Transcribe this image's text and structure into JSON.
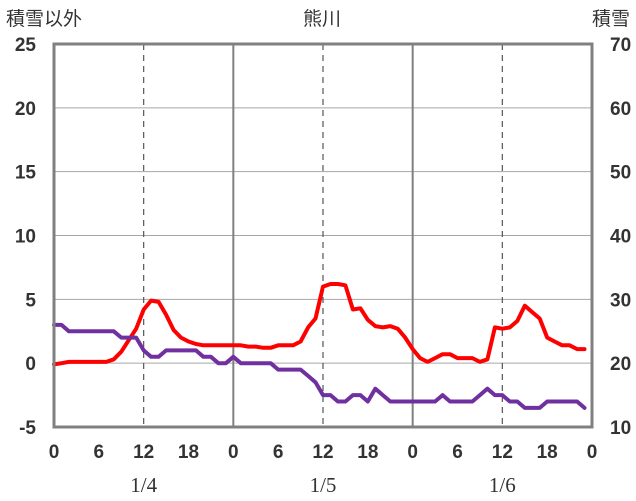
{
  "chart_data": {
    "type": "line",
    "title": "熊川",
    "ylabel_left": "積雪以外",
    "ylabel_right": "積雪",
    "y_left_range": [
      -5,
      25
    ],
    "y_left_ticks": [
      "-5",
      "0",
      "5",
      "10",
      "15",
      "20",
      "25"
    ],
    "y_right_range": [
      10,
      70
    ],
    "y_right_ticks": [
      "10",
      "20",
      "30",
      "40",
      "50",
      "60",
      "70"
    ],
    "x_range_hours": [
      0,
      72
    ],
    "x_tick_labels": [
      "0",
      "6",
      "12",
      "18",
      "0",
      "6",
      "12",
      "18",
      "0",
      "6",
      "12",
      "18",
      "0"
    ],
    "date_labels": [
      {
        "label": "1/4",
        "hour": 12
      },
      {
        "label": "1/5",
        "hour": 36
      },
      {
        "label": "1/6",
        "hour": 60
      }
    ],
    "day_boundaries": [
      24,
      48
    ],
    "dashed_gridlines": [
      12,
      36,
      60
    ],
    "series": [
      {
        "axis": "left",
        "color": "#ff0000",
        "x": [
          0,
          1,
          2,
          3,
          4,
          5,
          6,
          7,
          8,
          9,
          10,
          11,
          12,
          13,
          14,
          15,
          16,
          17,
          18,
          19,
          20,
          21,
          22,
          23,
          24,
          25,
          26,
          27,
          28,
          29,
          30,
          31,
          32,
          33,
          34,
          35,
          36,
          37,
          38,
          39,
          40,
          41,
          42,
          43,
          44,
          45,
          46,
          47,
          48,
          49,
          50,
          51,
          52,
          53,
          54,
          55,
          56,
          57,
          58,
          59,
          60,
          61,
          62,
          63,
          64,
          65,
          66,
          67,
          68,
          69,
          70,
          71
        ],
        "values": [
          -0.1,
          0.0,
          0.1,
          0.1,
          0.1,
          0.1,
          0.1,
          0.1,
          0.3,
          0.9,
          1.8,
          2.7,
          4.2,
          4.9,
          4.8,
          3.8,
          2.6,
          2.0,
          1.7,
          1.5,
          1.4,
          1.4,
          1.4,
          1.4,
          1.4,
          1.4,
          1.3,
          1.3,
          1.2,
          1.2,
          1.4,
          1.4,
          1.4,
          1.7,
          2.8,
          3.5,
          6.0,
          6.2,
          6.2,
          6.1,
          4.2,
          4.3,
          3.4,
          2.9,
          2.8,
          2.9,
          2.7,
          2.0,
          1.1,
          0.4,
          0.1,
          0.4,
          0.7,
          0.7,
          0.4,
          0.4,
          0.4,
          0.1,
          0.3,
          2.8,
          2.7,
          2.8,
          3.3,
          4.5,
          4.0,
          3.5,
          2.0,
          1.7,
          1.4,
          1.4,
          1.1,
          1.1
        ]
      },
      {
        "axis": "left",
        "color": "#7030a0",
        "x": [
          0,
          1,
          2,
          3,
          4,
          5,
          6,
          7,
          8,
          9,
          10,
          11,
          12,
          13,
          14,
          15,
          16,
          17,
          18,
          19,
          20,
          21,
          22,
          23,
          24,
          25,
          26,
          27,
          28,
          29,
          30,
          31,
          32,
          33,
          34,
          35,
          36,
          37,
          38,
          39,
          40,
          41,
          42,
          43,
          44,
          45,
          46,
          47,
          48,
          49,
          50,
          51,
          52,
          53,
          54,
          55,
          56,
          57,
          58,
          59,
          60,
          61,
          62,
          63,
          64,
          65,
          66,
          67,
          68,
          69,
          70,
          71
        ],
        "values": [
          3.0,
          3.0,
          2.5,
          2.5,
          2.5,
          2.5,
          2.5,
          2.5,
          2.5,
          2.0,
          2.0,
          2.0,
          1.0,
          0.5,
          0.5,
          1.0,
          1.0,
          1.0,
          1.0,
          1.0,
          0.5,
          0.5,
          0.0,
          0.0,
          0.5,
          0.0,
          0.0,
          0.0,
          0.0,
          0.0,
          -0.5,
          -0.5,
          -0.5,
          -0.5,
          -1.0,
          -1.5,
          -2.5,
          -2.5,
          -3.0,
          -3.0,
          -2.5,
          -2.5,
          -3.0,
          -2.0,
          -2.5,
          -3.0,
          -3.0,
          -3.0,
          -3.0,
          -3.0,
          -3.0,
          -3.0,
          -2.5,
          -3.0,
          -3.0,
          -3.0,
          -3.0,
          -2.5,
          -2.0,
          -2.5,
          -2.5,
          -3.0,
          -3.0,
          -3.5,
          -3.5,
          -3.5,
          -3.0,
          -3.0,
          -3.0,
          -3.0,
          -3.0,
          -3.5
        ]
      }
    ],
    "grid": true,
    "frame_color": "#808080",
    "text_color": "#333333"
  }
}
